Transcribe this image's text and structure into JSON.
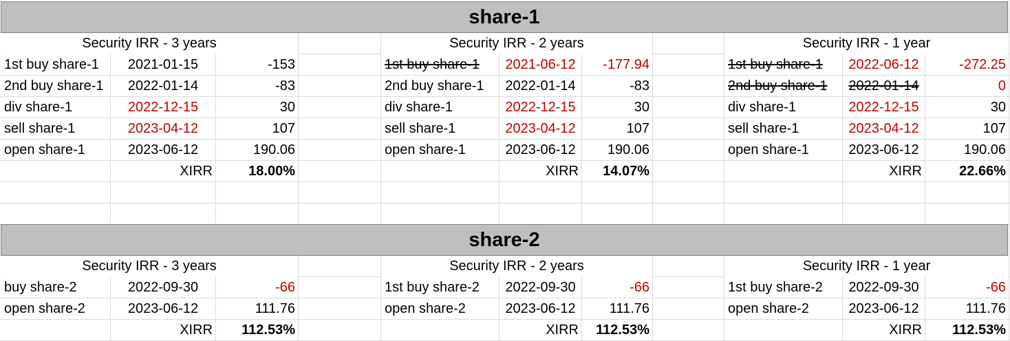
{
  "sections": [
    {
      "title": "share-1",
      "blocks": [
        {
          "header": "Security IRR - 3 years",
          "rows": [
            {
              "label": "1st buy share-1",
              "date": "2021-01-15",
              "value": "-153"
            },
            {
              "label": "2nd buy share-1",
              "date": "2022-01-14",
              "value": "-83"
            },
            {
              "label": "div share-1",
              "date": "2022-12-15",
              "value": "30"
            },
            {
              "label": "sell share-1",
              "date": "2023-04-12",
              "value": "107"
            },
            {
              "label": "open share-1",
              "date": "2023-06-12",
              "value": "190.06"
            }
          ],
          "xirr_label": "XIRR",
          "xirr_value": "18.00%"
        },
        {
          "header": "Security IRR - 2 years",
          "rows": [
            {
              "label": "1st buy share-1",
              "date": "2021-06-12",
              "value": "-177.94"
            },
            {
              "label": "2nd buy share-1",
              "date": "2022-01-14",
              "value": "-83"
            },
            {
              "label": "div share-1",
              "date": "2022-12-15",
              "value": "30"
            },
            {
              "label": "sell share-1",
              "date": "2023-04-12",
              "value": "107"
            },
            {
              "label": "open share-1",
              "date": "2023-06-12",
              "value": "190.06"
            }
          ],
          "xirr_label": "XIRR",
          "xirr_value": "14.07%"
        },
        {
          "header": "Security IRR - 1 year",
          "rows": [
            {
              "label": "1st buy share-1",
              "date": "2022-06-12",
              "value": "-272.25"
            },
            {
              "label": "2nd buy share-1",
              "date": "2022-01-14",
              "value": "0"
            },
            {
              "label": "div share-1",
              "date": "2022-12-15",
              "value": "30"
            },
            {
              "label": "sell share-1",
              "date": "2023-04-12",
              "value": "107"
            },
            {
              "label": "open share-1",
              "date": "2023-06-12",
              "value": "190.06"
            }
          ],
          "xirr_label": "XIRR",
          "xirr_value": "22.66%"
        }
      ]
    },
    {
      "title": "share-2",
      "blocks": [
        {
          "header": "Security IRR - 3 years",
          "rows": [
            {
              "label": "buy share-2",
              "date": "2022-09-30",
              "value": "-66"
            },
            {
              "label": "open share-2",
              "date": "2023-06-12",
              "value": "111.76"
            }
          ],
          "xirr_label": "XIRR",
          "xirr_value": "112.53%"
        },
        {
          "header": "Security IRR - 2 years",
          "rows": [
            {
              "label": "1st buy share-2",
              "date": "2022-09-30",
              "value": "-66"
            },
            {
              "label": "open share-2",
              "date": "2023-06-12",
              "value": "111.76"
            }
          ],
          "xirr_label": "XIRR",
          "xirr_value": "112.53%"
        },
        {
          "header": "Security IRR - 1 year",
          "rows": [
            {
              "label": "1st buy share-2",
              "date": "2022-09-30",
              "value": "-66"
            },
            {
              "label": "open share-2",
              "date": "2023-06-12",
              "value": "111.76"
            }
          ],
          "xirr_label": "XIRR",
          "xirr_value": "112.53%"
        }
      ]
    }
  ],
  "colors": {
    "negative_or_highlight": "#c00000",
    "header_fill": "#bfbfbf",
    "gridline": "#d9d9d9"
  }
}
